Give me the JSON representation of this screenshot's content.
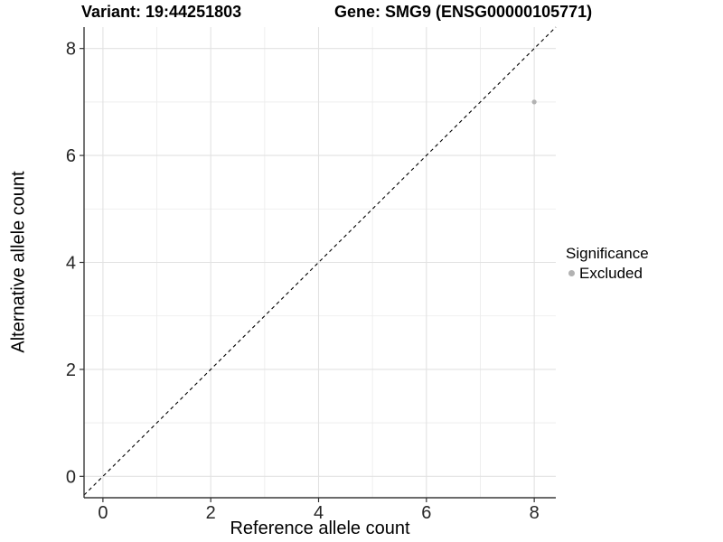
{
  "header": {
    "variant_title": "Variant: 19:44251803",
    "gene_title": "Gene: SMG9 (ENSG00000105771)"
  },
  "axes": {
    "x_title": "Reference allele count",
    "y_title": "Alternative allele count"
  },
  "legend": {
    "title": "Significance",
    "items": [
      {
        "label": "Excluded",
        "color": "#b2b2b2"
      }
    ]
  },
  "chart_data": {
    "type": "scatter",
    "title": "Variant: 19:44251803   Gene: SMG9 (ENSG00000105771)",
    "xlabel": "Reference allele count",
    "ylabel": "Alternative allele count",
    "xlim": [
      -0.35,
      8.4
    ],
    "ylim": [
      -0.4,
      8.4
    ],
    "x_ticks": [
      0,
      2,
      4,
      6,
      8
    ],
    "y_ticks": [
      0,
      2,
      4,
      6,
      8
    ],
    "x_minor_gridlines": [
      1,
      3,
      5,
      7
    ],
    "y_minor_gridlines": [
      1,
      3,
      5,
      7
    ],
    "grid": "on",
    "legend_position": "right",
    "series": [
      {
        "name": "Excluded",
        "color": "#b2b2b2",
        "point_radius": 2.6,
        "points": [
          {
            "x": 8,
            "y": 7
          }
        ]
      }
    ],
    "reference_line": {
      "kind": "identity",
      "slope": 1,
      "intercept": 0,
      "style": "dashed",
      "color": "#000000"
    },
    "colors": {
      "background": "#ffffff",
      "grid_major": "#e2e2e2",
      "grid_minor": "#ededed",
      "axis_line": "#3a3a3a",
      "tick_mark": "#333333",
      "tick_text": "#262626",
      "title_text": "#000000"
    }
  }
}
